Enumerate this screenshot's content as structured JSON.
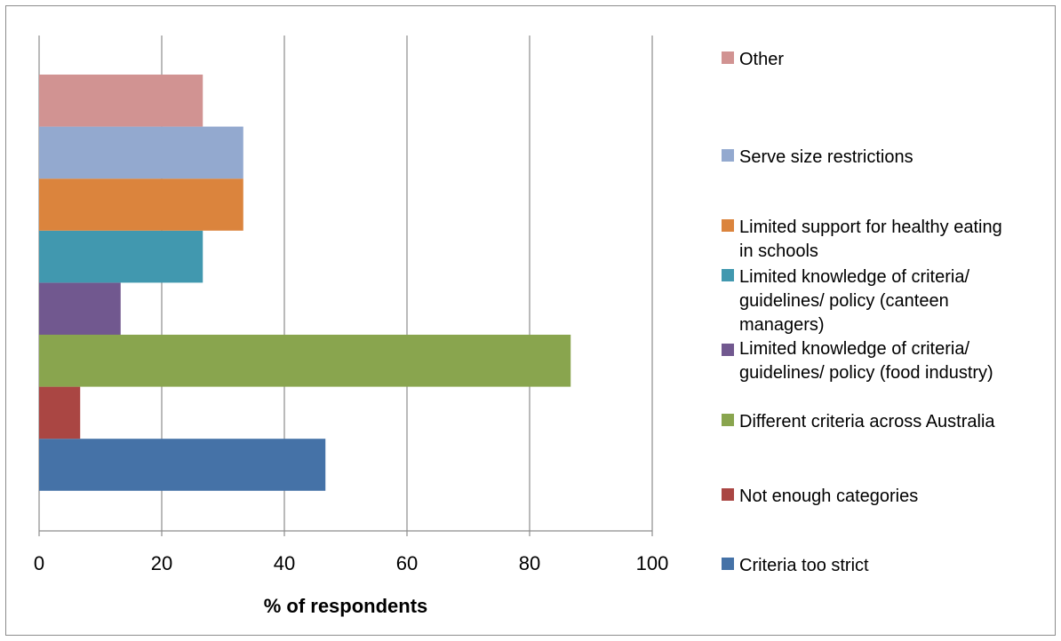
{
  "chart_data": {
    "type": "bar",
    "orientation": "horizontal",
    "title": "",
    "xlabel": "% of respondents",
    "ylabel": "",
    "xlim": [
      0,
      100
    ],
    "x_ticks": [
      0,
      20,
      40,
      60,
      80,
      100
    ],
    "grid": "vertical",
    "legend_position": "right",
    "series": [
      {
        "name": "Criteria too strict",
        "value": 46.7,
        "color": "#4572A7"
      },
      {
        "name": "Not enough categories",
        "value": 6.7,
        "color": "#AA4643"
      },
      {
        "name": "Different criteria across Australia",
        "value": 86.7,
        "color": "#89A54E"
      },
      {
        "name": "Limited knowledge of criteria/ guidelines/ policy (food industry)",
        "value": 13.3,
        "color": "#71588F"
      },
      {
        "name": "Limited knowledge of criteria/ guidelines/ policy (canteen managers)",
        "value": 26.7,
        "color": "#4198AF"
      },
      {
        "name": "Limited support for healthy eating in schools",
        "value": 33.3,
        "color": "#DB843D"
      },
      {
        "name": "Serve size restrictions",
        "value": 33.3,
        "color": "#93A9CF"
      },
      {
        "name": "Other",
        "value": 26.7,
        "color": "#D19392"
      }
    ]
  }
}
